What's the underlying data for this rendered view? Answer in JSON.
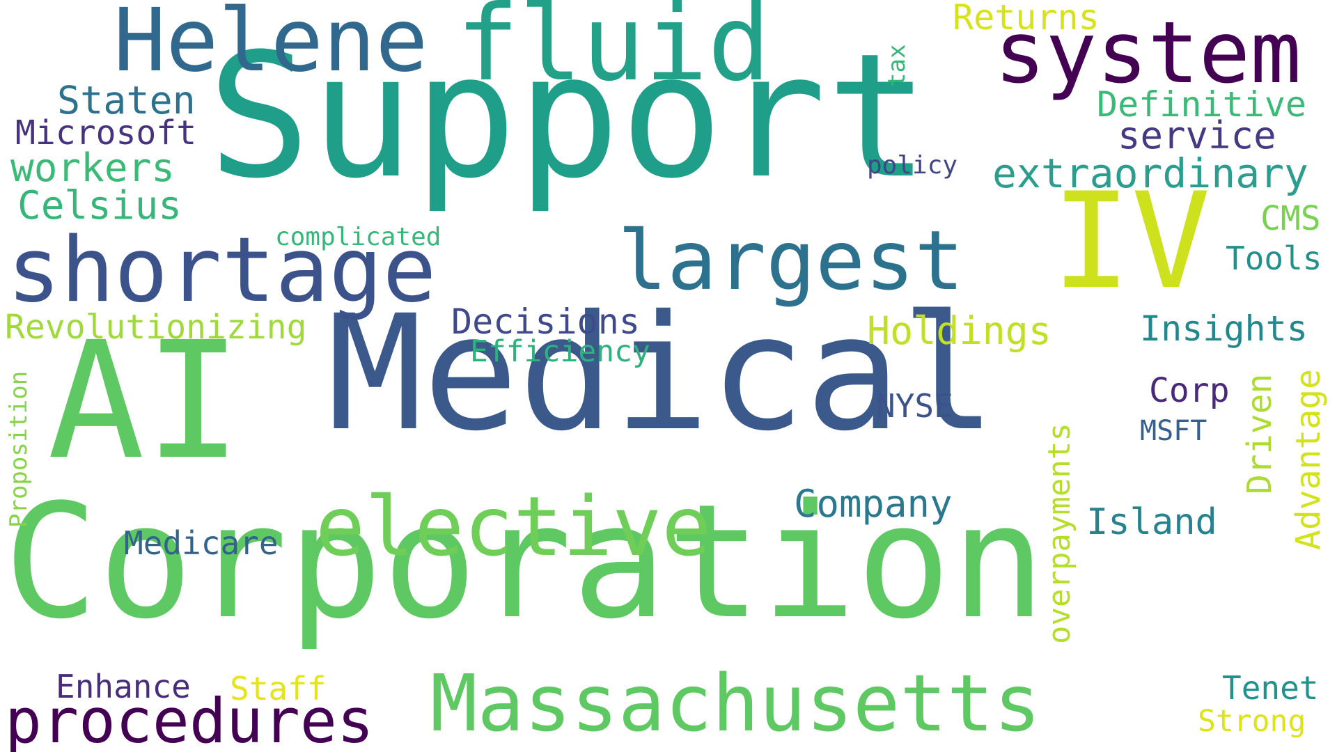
{
  "words": {
    "support": {
      "text": "Support",
      "color": "#1f9e89"
    },
    "medical": {
      "text": "Medical",
      "color": "#3b5a8b"
    },
    "corporation": {
      "text": "Corporation",
      "color": "#5ec962"
    },
    "ai": {
      "text": "AI",
      "color": "#5ec962"
    },
    "iv": {
      "text": "IV",
      "color": "#cde11d"
    },
    "fluid": {
      "text": "fluid",
      "color": "#22a088"
    },
    "helene": {
      "text": "Helene",
      "color": "#31688e"
    },
    "system": {
      "text": "system",
      "color": "#440154"
    },
    "shortage": {
      "text": "shortage",
      "color": "#3b528b"
    },
    "largest": {
      "text": "largest",
      "color": "#2c728e"
    },
    "massachusetts": {
      "text": "Massachusetts",
      "color": "#5ec962"
    },
    "elective": {
      "text": "elective",
      "color": "#6ece58"
    },
    "procedures": {
      "text": "procedures",
      "color": "#440154"
    },
    "returns": {
      "text": "Returns",
      "color": "#d8e219"
    },
    "tax": {
      "text": "tax",
      "color": "#35b779"
    },
    "definitive": {
      "text": "Definitive",
      "color": "#3aba76"
    },
    "service": {
      "text": "service",
      "color": "#443a83"
    },
    "extraordinary": {
      "text": "extraordinary",
      "color": "#2a9d8e"
    },
    "policy": {
      "text": "policy",
      "color": "#414487"
    },
    "staten": {
      "text": "Staten",
      "color": "#2c728e"
    },
    "microsoft": {
      "text": "Microsoft",
      "color": "#46327e"
    },
    "workers": {
      "text": "workers",
      "color": "#3aba76"
    },
    "celsius": {
      "text": "Celsius",
      "color": "#35b779"
    },
    "complicated": {
      "text": "complicated",
      "color": "#35b779"
    },
    "cms": {
      "text": "CMS",
      "color": "#7ad151"
    },
    "tools": {
      "text": "Tools",
      "color": "#21918c"
    },
    "revolutionizing": {
      "text": "Revolutionizing",
      "color": "#a0da39"
    },
    "decisions": {
      "text": "Decisions",
      "color": "#3e4a89"
    },
    "efficiency": {
      "text": "Efficiency",
      "color": "#2db27d"
    },
    "holdings": {
      "text": "Holdings",
      "color": "#c0df25"
    },
    "insights": {
      "text": "Insights",
      "color": "#23888e"
    },
    "corp": {
      "text": "Corp",
      "color": "#482878"
    },
    "nyse": {
      "text": "NYSE",
      "color": "#3b528b"
    },
    "msft": {
      "text": "MSFT",
      "color": "#355f8d"
    },
    "company": {
      "text": "Company",
      "color": "#2a788e"
    },
    "island": {
      "text": "Island",
      "color": "#26828e"
    },
    "medicare": {
      "text": "Medicare",
      "color": "#33638d"
    },
    "proposition": {
      "text": "Proposition",
      "color": "#86d549"
    },
    "overpayments": {
      "text": "overpayments",
      "color": "#b5de2b"
    },
    "driven": {
      "text": "Driven",
      "color": "#addc30"
    },
    "advantage": {
      "text": "Advantage",
      "color": "#d2e21b"
    },
    "enhance": {
      "text": "Enhance",
      "color": "#472d7b"
    },
    "staff": {
      "text": "Staff",
      "color": "#e5e419"
    },
    "tenet": {
      "text": "Tenet",
      "color": "#20928c"
    },
    "strong": {
      "text": "Strong",
      "color": "#dde318"
    }
  }
}
